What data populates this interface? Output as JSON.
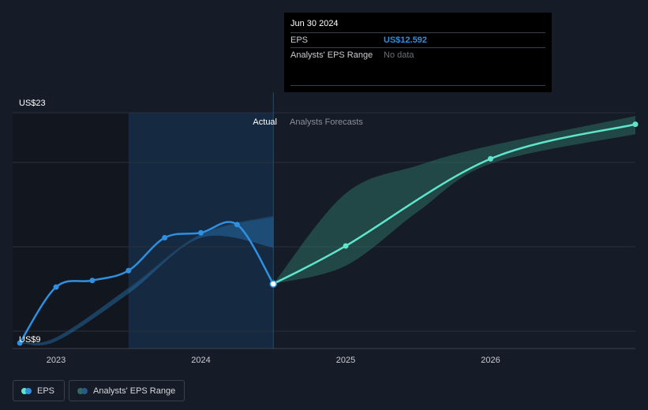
{
  "chart_data": {
    "type": "line",
    "title": "",
    "y_axis_labels": {
      "top": "US$23",
      "bottom": "US$9"
    },
    "ylim": [
      9,
      23
    ],
    "xlim": [
      2022.7,
      2027.0
    ],
    "x_ticks": [
      {
        "value": 2023.0,
        "label": "2023"
      },
      {
        "value": 2024.0,
        "label": "2024"
      },
      {
        "value": 2025.0,
        "label": "2025"
      },
      {
        "value": 2026.0,
        "label": "2026"
      }
    ],
    "region_labels": {
      "actual": "Actual",
      "forecast": "Analysts Forecasts"
    },
    "actual_start": 2023.5,
    "forecast_start": 2024.5,
    "series": [
      {
        "name": "EPS",
        "color": "#2f8fe0",
        "points": [
          {
            "x": 2022.75,
            "y": 9.0
          },
          {
            "x": 2023.0,
            "y": 12.4
          },
          {
            "x": 2023.25,
            "y": 12.8
          },
          {
            "x": 2023.5,
            "y": 13.4
          },
          {
            "x": 2023.75,
            "y": 15.4
          },
          {
            "x": 2024.0,
            "y": 15.7
          },
          {
            "x": 2024.25,
            "y": 16.2
          },
          {
            "x": 2024.5,
            "y": 12.592
          }
        ]
      },
      {
        "name": "EPS Forecast",
        "color": "#5ee6cc",
        "points": [
          {
            "x": 2024.5,
            "y": 12.592
          },
          {
            "x": 2025.0,
            "y": 14.9
          },
          {
            "x": 2026.0,
            "y": 20.2
          },
          {
            "x": 2027.0,
            "y": 22.3
          }
        ]
      }
    ],
    "past_estimate_range": {
      "name": "Analysts' EPS Range (past)",
      "color": "#2f8fe0",
      "upper": [
        {
          "x": 2022.75,
          "y": 9.0
        },
        {
          "x": 2023.0,
          "y": 9.3
        },
        {
          "x": 2023.5,
          "y": 12.3
        },
        {
          "x": 2024.0,
          "y": 15.6
        },
        {
          "x": 2024.5,
          "y": 16.7
        }
      ],
      "lower": [
        {
          "x": 2024.5,
          "y": 14.8
        },
        {
          "x": 2024.0,
          "y": 15.4
        },
        {
          "x": 2023.5,
          "y": 12.0
        },
        {
          "x": 2023.0,
          "y": 9.1
        },
        {
          "x": 2022.75,
          "y": 9.0
        }
      ]
    },
    "forecast_range": {
      "name": "Analysts' EPS Range",
      "color": "#2e6b62",
      "upper": [
        {
          "x": 2024.5,
          "y": 12.592
        },
        {
          "x": 2025.0,
          "y": 18.1
        },
        {
          "x": 2025.5,
          "y": 19.8
        },
        {
          "x": 2026.0,
          "y": 21.0
        },
        {
          "x": 2027.0,
          "y": 22.8
        }
      ],
      "lower": [
        {
          "x": 2027.0,
          "y": 21.7
        },
        {
          "x": 2026.0,
          "y": 19.9
        },
        {
          "x": 2025.5,
          "y": 17.0
        },
        {
          "x": 2025.0,
          "y": 13.7
        },
        {
          "x": 2024.5,
          "y": 12.592
        }
      ]
    }
  },
  "tooltip": {
    "date": "Jun 30 2024",
    "rows": [
      {
        "label": "EPS",
        "value": "US$12.592"
      },
      {
        "label": "Analysts' EPS Range",
        "value": "No data"
      }
    ]
  },
  "legend": {
    "eps_label": "EPS",
    "range_label": "Analysts' EPS Range",
    "eps_colors": [
      "#5ee6cc",
      "#2f8fe0"
    ],
    "range_colors": [
      "#2e6b62",
      "#2a5a86"
    ]
  }
}
